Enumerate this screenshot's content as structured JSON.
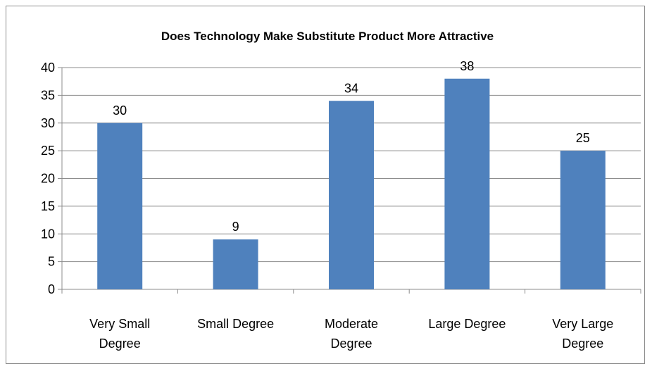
{
  "chart_data": {
    "type": "bar",
    "title": "Does Technology Make Substitute Product More Attractive",
    "xlabel": "",
    "ylabel": "",
    "categories": [
      [
        "Very Small",
        "Degree"
      ],
      [
        "Small Degree"
      ],
      [
        "Moderate",
        "Degree"
      ],
      [
        "Large Degree"
      ],
      [
        "Very Large",
        "Degree"
      ]
    ],
    "values": [
      30,
      9,
      34,
      38,
      25
    ],
    "ylim": [
      0,
      40
    ],
    "yticks": [
      0,
      5,
      10,
      15,
      20,
      25,
      30,
      35,
      40
    ],
    "grid": true,
    "legend": "none",
    "data_labels": true,
    "colors": {
      "bar": "#4F81BD",
      "grid": "#8c8c8c",
      "axis": "#8c8c8c",
      "border": "#8c8c8c"
    }
  }
}
